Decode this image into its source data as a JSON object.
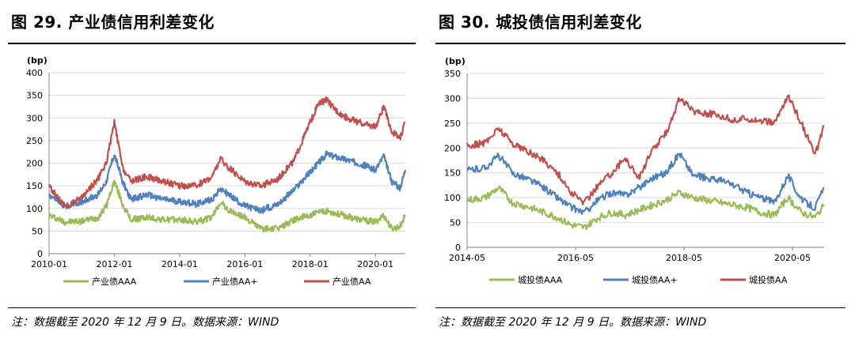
{
  "charts": [
    {
      "fig_title": "图 29. 产业债信用利差变化",
      "note": "注：数据截至 2020 年 12 月 9 日。数据来源：WIND",
      "unit_label": "(bp)",
      "legend": [
        "产业债AAA",
        "产业债AA+",
        "产业债AA"
      ]
    },
    {
      "fig_title": "图 30. 城投债信用利差变化",
      "note": "注：数据截至 2020 年 12 月 9 日。数据来源：WIND",
      "unit_label": "(bp)",
      "legend": [
        "城投债AAA",
        "城投债AA+",
        "城投债AA"
      ]
    }
  ],
  "chart_data": [
    {
      "type": "line",
      "title": "图 29. 产业债信用利差变化",
      "ylabel": "(bp)",
      "ylim": [
        0,
        400
      ],
      "yticks": [
        0,
        50,
        100,
        150,
        200,
        250,
        300,
        350,
        400
      ],
      "xlim": [
        "2010-01",
        "2020-12"
      ],
      "xticks": [
        "2010-01",
        "2012-01",
        "2014-01",
        "2016-01",
        "2018-01",
        "2020-01"
      ],
      "grid": true,
      "legend_position": "bottom",
      "x": [
        "2010-01",
        "2010-07",
        "2011-01",
        "2011-07",
        "2011-10",
        "2012-01",
        "2012-04",
        "2012-07",
        "2013-01",
        "2013-07",
        "2014-01",
        "2014-07",
        "2015-01",
        "2015-04",
        "2015-07",
        "2016-01",
        "2016-07",
        "2017-01",
        "2017-07",
        "2018-01",
        "2018-04",
        "2018-07",
        "2018-10",
        "2019-01",
        "2019-07",
        "2020-01",
        "2020-04",
        "2020-07",
        "2020-10",
        "2020-12"
      ],
      "series": [
        {
          "name": "产业债AAA",
          "color": "#9BBB59",
          "values": [
            85,
            70,
            72,
            80,
            105,
            160,
            110,
            75,
            80,
            75,
            75,
            70,
            80,
            115,
            95,
            80,
            55,
            55,
            75,
            85,
            90,
            95,
            90,
            85,
            75,
            70,
            85,
            55,
            60,
            85
          ]
        },
        {
          "name": "产业债AA+",
          "color": "#4F81BD",
          "values": [
            130,
            105,
            115,
            130,
            160,
            220,
            160,
            120,
            130,
            120,
            115,
            110,
            120,
            145,
            130,
            105,
            95,
            110,
            140,
            180,
            200,
            220,
            215,
            210,
            200,
            185,
            215,
            160,
            145,
            185
          ]
        },
        {
          "name": "产业债AA",
          "color": "#C0504D",
          "values": [
            150,
            100,
            125,
            165,
            200,
            290,
            190,
            160,
            170,
            160,
            150,
            150,
            170,
            210,
            190,
            160,
            150,
            165,
            205,
            290,
            330,
            340,
            320,
            305,
            290,
            280,
            325,
            270,
            255,
            290
          ]
        }
      ]
    },
    {
      "type": "line",
      "title": "图 30. 城投债信用利差变化",
      "ylabel": "(bp)",
      "ylim": [
        0,
        350
      ],
      "yticks": [
        0,
        50,
        100,
        150,
        200,
        250,
        300,
        350
      ],
      "xlim": [
        "2014-05",
        "2020-12"
      ],
      "xticks": [
        "2014-05",
        "2016-05",
        "2018-05",
        "2020-05"
      ],
      "grid": true,
      "legend_position": "bottom",
      "x": [
        "2014-05",
        "2014-09",
        "2014-12",
        "2015-03",
        "2015-07",
        "2015-10",
        "2016-01",
        "2016-04",
        "2016-07",
        "2016-10",
        "2017-01",
        "2017-04",
        "2017-07",
        "2017-10",
        "2018-01",
        "2018-04",
        "2018-07",
        "2018-10",
        "2019-01",
        "2019-04",
        "2019-07",
        "2019-10",
        "2020-01",
        "2020-04",
        "2020-07",
        "2020-10",
        "2020-12"
      ],
      "series": [
        {
          "name": "城投债AAA",
          "color": "#9BBB59",
          "values": [
            95,
            100,
            120,
            90,
            80,
            70,
            60,
            45,
            40,
            60,
            70,
            65,
            75,
            85,
            95,
            110,
            100,
            95,
            90,
            85,
            80,
            70,
            65,
            100,
            70,
            60,
            85
          ]
        },
        {
          "name": "城投债AA+",
          "color": "#4F81BD",
          "values": [
            155,
            160,
            185,
            150,
            135,
            120,
            100,
            80,
            70,
            95,
            110,
            105,
            120,
            140,
            150,
            190,
            145,
            140,
            135,
            125,
            110,
            100,
            90,
            145,
            95,
            80,
            120
          ]
        },
        {
          "name": "城投债AA",
          "color": "#C0504D",
          "values": [
            205,
            210,
            240,
            210,
            190,
            175,
            150,
            110,
            90,
            125,
            150,
            180,
            140,
            195,
            230,
            300,
            275,
            270,
            265,
            255,
            260,
            255,
            250,
            305,
            250,
            185,
            245
          ]
        }
      ]
    }
  ]
}
